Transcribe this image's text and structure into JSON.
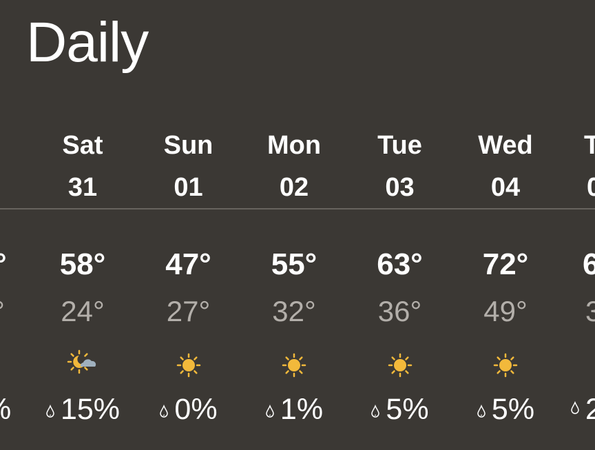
{
  "title": "Daily",
  "partial_left": {
    "high": "°",
    "low": "°",
    "precip": "%"
  },
  "days": [
    {
      "name": "Sat",
      "date": "31",
      "high": "58°",
      "low": "24°",
      "icon": "moon-cloud-icon",
      "precip": "15%"
    },
    {
      "name": "Sun",
      "date": "01",
      "high": "47°",
      "low": "27°",
      "icon": "sun-icon",
      "precip": "0%"
    },
    {
      "name": "Mon",
      "date": "02",
      "high": "55°",
      "low": "32°",
      "icon": "sun-icon",
      "precip": "1%"
    },
    {
      "name": "Tue",
      "date": "03",
      "high": "63°",
      "low": "36°",
      "icon": "sun-icon",
      "precip": "5%"
    },
    {
      "name": "Wed",
      "date": "04",
      "high": "72°",
      "low": "49°",
      "icon": "sun-icon",
      "precip": "5%"
    }
  ],
  "partial_right": {
    "name": "T",
    "date": "0",
    "high": "6",
    "low": "3",
    "precip": "2"
  },
  "colors": {
    "background": "#3b3834",
    "sun": "#f2b93b",
    "cloud": "#9fb0be",
    "low_text": "#b3afaa"
  }
}
